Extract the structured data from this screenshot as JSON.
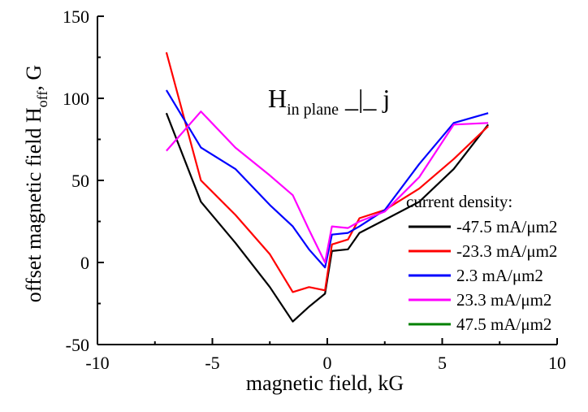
{
  "chart_data": {
    "type": "line",
    "title": "",
    "xlabel": "magnetic field, kG",
    "ylabel_main": "offset magnetic field H",
    "ylabel_sub": "off",
    "ylabel_tail": ", G",
    "xlim": [
      -10,
      10
    ],
    "ylim": [
      -50,
      150
    ],
    "x_ticks": [
      -10,
      -5,
      0,
      5,
      10
    ],
    "y_ticks": [
      -50,
      0,
      50,
      100,
      150
    ],
    "x_tick_labels": [
      "-10",
      "-5",
      "0",
      "5",
      "10"
    ],
    "y_tick_labels": [
      "-50",
      "0",
      "50",
      "100",
      "150"
    ],
    "grid": false,
    "annotation": {
      "main": "H",
      "sub": "in plane",
      "tail": " _|_ j"
    },
    "legend": {
      "title": "current density:",
      "placement": "lower-right"
    },
    "series": [
      {
        "name": "-47.5 mA/μm2",
        "color": "#000000",
        "points": [
          [
            -7,
            91
          ],
          [
            -5.5,
            37
          ],
          [
            -4,
            12
          ],
          [
            -2.5,
            -15
          ],
          [
            -1.5,
            -36
          ],
          [
            -0.8,
            -27
          ],
          [
            -0.1,
            -19
          ],
          [
            0.2,
            7
          ],
          [
            0.9,
            8
          ],
          [
            1.4,
            18
          ],
          [
            2.5,
            26
          ],
          [
            4,
            37
          ],
          [
            5.5,
            57
          ],
          [
            7,
            84
          ]
        ]
      },
      {
        "name": "-23.3 mA/μm2",
        "color": "#ff0000",
        "points": [
          [
            -7,
            128
          ],
          [
            -5.5,
            50
          ],
          [
            -4,
            29
          ],
          [
            -2.5,
            5
          ],
          [
            -1.5,
            -18
          ],
          [
            -0.8,
            -15
          ],
          [
            -0.1,
            -17
          ],
          [
            0.2,
            11
          ],
          [
            0.9,
            14
          ],
          [
            1.4,
            27
          ],
          [
            2.5,
            32
          ],
          [
            4,
            45
          ],
          [
            5.5,
            63
          ],
          [
            7,
            83
          ]
        ]
      },
      {
        "name": "2.3 mA/μm2",
        "color": "#0000ff",
        "points": [
          [
            -7,
            105
          ],
          [
            -5.5,
            70
          ],
          [
            -4,
            57
          ],
          [
            -2.5,
            35
          ],
          [
            -1.5,
            22
          ],
          [
            -0.8,
            8
          ],
          [
            -0.1,
            -3
          ],
          [
            0.2,
            17
          ],
          [
            0.9,
            18
          ],
          [
            1.4,
            22
          ],
          [
            2.5,
            32
          ],
          [
            4,
            60
          ],
          [
            5.5,
            85
          ],
          [
            7,
            91
          ]
        ]
      },
      {
        "name": "23.3 mA/μm2",
        "color": "#ff00ff",
        "points": [
          [
            -7,
            68
          ],
          [
            -5.5,
            92
          ],
          [
            -4,
            70
          ],
          [
            -2.5,
            53
          ],
          [
            -1.5,
            41
          ],
          [
            -0.8,
            20
          ],
          [
            -0.1,
            0
          ],
          [
            0.2,
            22
          ],
          [
            0.9,
            21
          ],
          [
            1.4,
            25
          ],
          [
            2.5,
            31
          ],
          [
            4,
            52
          ],
          [
            5.5,
            84
          ],
          [
            7,
            85
          ]
        ]
      },
      {
        "name": "47.5 mA/μm2",
        "color": "#008000",
        "points": []
      }
    ]
  }
}
